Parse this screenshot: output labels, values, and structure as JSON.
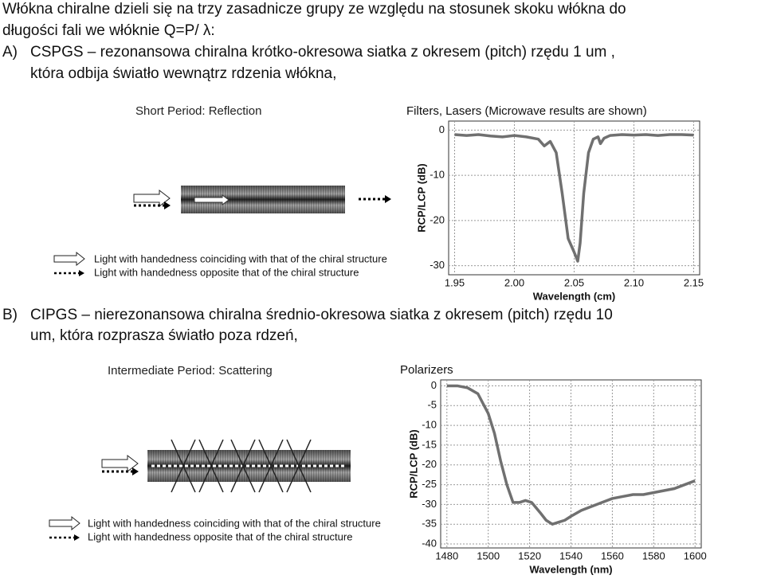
{
  "intro": [
    "Włókna chiralne dzieli się na trzy zasadnicze grupy ze względu na stosunek skoku włókna do",
    "długości fali we włóknie Q=P/ λ:"
  ],
  "section_a": {
    "label": "A)",
    "lines": [
      "CSPGS – rezonansowa chiralna krótko-okresowa siatka z okresem (pitch) rzędu 1 um ,",
      "która odbija światło wewnątrz rdzenia włókna,"
    ],
    "diagram_title": "Short Period: Reflection",
    "legend": [
      "Light with handedness coinciding with that of the chiral structure",
      "Light with handedness opposite that of the chiral structure"
    ],
    "chart_data": {
      "type": "line",
      "title": "Filters, Lasers (Microwave results are shown)",
      "x_label": "Wavelength (cm)",
      "y_label": "RCP/LCP (dB)",
      "x": [
        1.95,
        1.96,
        1.97,
        1.98,
        1.99,
        2.0,
        2.01,
        2.02,
        2.025,
        2.03,
        2.035,
        2.04,
        2.045,
        2.05,
        2.053,
        2.055,
        2.058,
        2.062,
        2.066,
        2.07,
        2.072,
        2.075,
        2.08,
        2.09,
        2.1,
        2.11,
        2.12,
        2.13,
        2.14,
        2.15
      ],
      "values": [
        -1,
        -1.2,
        -1,
        -1.3,
        -1.5,
        -1.2,
        -1.5,
        -2,
        -3.5,
        -2.5,
        -5,
        -14,
        -24,
        -27,
        -29,
        -25,
        -14,
        -5,
        -2,
        -1.5,
        -3,
        -1.8,
        -1.2,
        -1,
        -1.1,
        -1,
        -1.2,
        -1,
        -1,
        -1.1
      ],
      "color": "#707070",
      "xlim": [
        1.945,
        2.155
      ],
      "ylim": [
        -32,
        2
      ],
      "xticks": [
        1.95,
        {
          "value": 2,
          "label": "2.00"
        },
        2.05,
        {
          "value": 2.1,
          "label": "2.10"
        },
        2.15
      ],
      "yticks": [
        0,
        -10,
        -20,
        -30
      ],
      "grid": true
    }
  },
  "section_b": {
    "label": "B)",
    "lines": [
      "CIPGS – nierezonansowa chiralna średnio-okresowa siatka z okresem (pitch) rzędu 10",
      "um,  która rozprasza światło poza rdzeń,"
    ],
    "diagram_title": "Intermediate Period:  Scattering",
    "legend": [
      "Light with handedness coinciding with that of the chiral structure",
      "Light with handedness opposite that of the chiral structure"
    ],
    "chart_data": {
      "type": "line",
      "title": "Polarizers",
      "x_label": "Wavelength (nm)",
      "y_label": "RCP/LCP (dB)",
      "x": [
        1480,
        1485,
        1490,
        1495,
        1500,
        1503,
        1506,
        1509,
        1512,
        1515,
        1518,
        1521,
        1525,
        1528,
        1531,
        1534,
        1537,
        1540,
        1545,
        1550,
        1555,
        1560,
        1565,
        1570,
        1575,
        1580,
        1585,
        1590,
        1595,
        1600
      ],
      "values": [
        0,
        0,
        -0.5,
        -2,
        -7,
        -12,
        -19,
        -25,
        -29.5,
        -29.5,
        -29,
        -29.5,
        -32,
        -34,
        -35,
        -34.5,
        -34,
        -33,
        -31.5,
        -30.5,
        -29.5,
        -28.5,
        -28,
        -27.5,
        -27.5,
        -27,
        -26.5,
        -26,
        -25,
        -24
      ],
      "color": "#707070",
      "xlim": [
        1477,
        1603
      ],
      "ylim": [
        -41,
        1.5
      ],
      "xticks": [
        1480,
        1500,
        1520,
        1540,
        1560,
        1580,
        1600
      ],
      "yticks": [
        0,
        -5,
        -10,
        -15,
        -20,
        -25,
        -30,
        -35,
        -40
      ],
      "grid": true
    }
  }
}
